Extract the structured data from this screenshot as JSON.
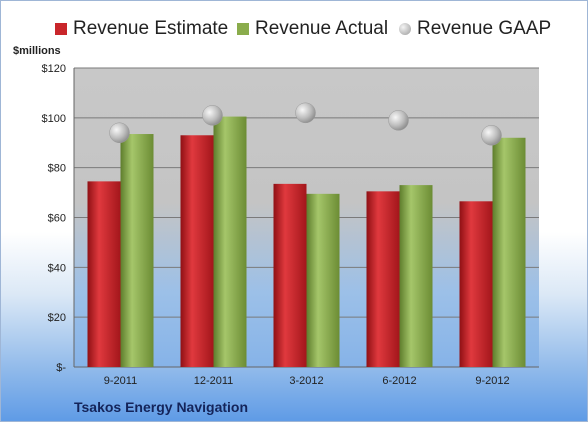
{
  "chart_data": {
    "type": "bar",
    "categories": [
      "9-2011",
      "12-2011",
      "3-2012",
      "6-2012",
      "9-2012"
    ],
    "series": [
      {
        "name": "Revenue Estimate",
        "type": "bar",
        "color": "#c9262b",
        "values": [
          74.5,
          93,
          73.5,
          70.5,
          66.5
        ]
      },
      {
        "name": "Revenue Actual",
        "type": "bar",
        "color": "#8aac4c",
        "values": [
          93.5,
          100.5,
          69.5,
          73,
          92
        ]
      },
      {
        "name": "Revenue GAAP",
        "type": "marker",
        "color": "#b9b9b9",
        "values": [
          94,
          101,
          102,
          99,
          93
        ]
      }
    ],
    "ylabel": "$millions",
    "ylim": [
      0,
      120
    ],
    "y_ticks": [
      0,
      20,
      40,
      60,
      80,
      100,
      120
    ],
    "y_tick_labels": [
      "$-",
      "$20",
      "$40",
      "$60",
      "$80",
      "$100",
      "$120"
    ],
    "legend_position": "top",
    "grid": true,
    "company": "Tsakos Energy Navigation"
  }
}
